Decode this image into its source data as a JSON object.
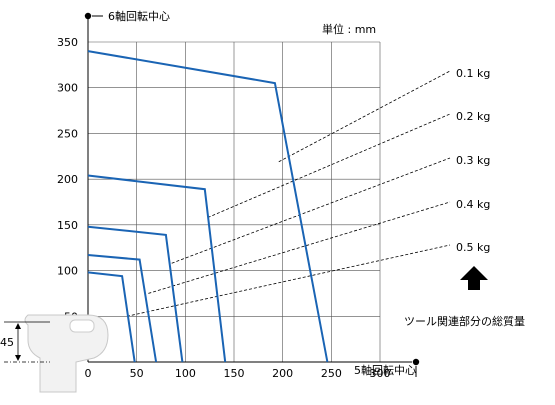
{
  "chart_data": {
    "type": "line",
    "unit_label": "単位 : mm",
    "y_axis_title": "6軸回転中心",
    "x_axis_title": "5軸回転中心",
    "xlim": [
      0,
      300
    ],
    "ylim": [
      0,
      350
    ],
    "x_ticks": [
      0,
      50,
      100,
      150,
      200,
      250,
      300
    ],
    "y_ticks": [
      50,
      100,
      150,
      200,
      250,
      300,
      350
    ],
    "grid": true,
    "offset_label": "45",
    "legend_caption": "ツール関連部分の総質量",
    "series": [
      {
        "name": "0.1 kg",
        "points": [
          [
            0,
            340
          ],
          [
            192,
            305
          ],
          [
            246,
            0
          ]
        ]
      },
      {
        "name": "0.2 kg",
        "points": [
          [
            0,
            204
          ],
          [
            120,
            189
          ],
          [
            141,
            0
          ]
        ]
      },
      {
        "name": "0.3 kg",
        "points": [
          [
            0,
            148
          ],
          [
            80,
            139
          ],
          [
            97,
            0
          ]
        ]
      },
      {
        "name": "0.4 kg",
        "points": [
          [
            0,
            117
          ],
          [
            53,
            112
          ],
          [
            70,
            0
          ]
        ]
      },
      {
        "name": "0.5 kg",
        "points": [
          [
            0,
            98
          ],
          [
            35,
            94
          ],
          [
            48,
            0
          ]
        ]
      }
    ],
    "leaders": [
      {
        "series": "0.1 kg",
        "from": [
          196,
          219
        ]
      },
      {
        "series": "0.2 kg",
        "from": [
          123,
          158
        ]
      },
      {
        "series": "0.3 kg",
        "from": [
          86,
          108
        ]
      },
      {
        "series": "0.4 kg",
        "from": [
          62,
          75
        ]
      },
      {
        "series": "0.5 kg",
        "from": [
          40,
          50
        ]
      }
    ],
    "colors": {
      "curve": "#1a64b4",
      "grid": "#555555",
      "axis": "#000000"
    }
  }
}
